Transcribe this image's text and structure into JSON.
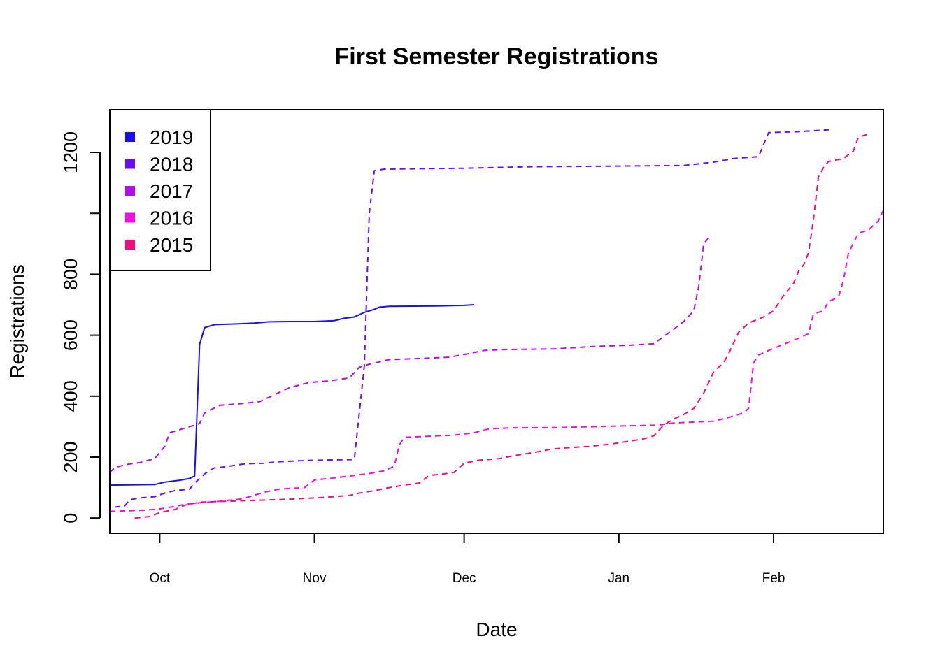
{
  "chart_data": {
    "type": "line",
    "title": "First Semester Registrations",
    "xlabel": "Date",
    "ylabel": "Registrations",
    "x_type": "date",
    "xlim": [
      "2019-09-21",
      "2020-02-23"
    ],
    "ylim": [
      -50,
      1340
    ],
    "xticks": [
      {
        "date": "2019-10-01",
        "label": "Oct"
      },
      {
        "date": "2019-11-01",
        "label": "Nov"
      },
      {
        "date": "2019-12-01",
        "label": "Dec"
      },
      {
        "date": "2020-01-01",
        "label": "Jan"
      },
      {
        "date": "2020-02-01",
        "label": "Feb"
      }
    ],
    "yticks": [
      0,
      200,
      400,
      600,
      800,
      1000,
      1200
    ],
    "ytick_labels": [
      "0",
      "200",
      "400",
      "600",
      "800",
      "",
      "1200"
    ],
    "grid": false,
    "legend_position": "top-left",
    "series": [
      {
        "name": "2019",
        "color": "#1a0df0",
        "style": "solid",
        "points": [
          [
            "2019-09-21",
            108
          ],
          [
            "2019-09-30",
            110
          ],
          [
            "2019-10-02",
            118
          ],
          [
            "2019-10-05",
            124
          ],
          [
            "2019-10-07",
            130
          ],
          [
            "2019-10-08",
            138
          ],
          [
            "2019-10-09",
            570
          ],
          [
            "2019-10-10",
            625
          ],
          [
            "2019-10-12",
            635
          ],
          [
            "2019-10-16",
            637
          ],
          [
            "2019-10-20",
            640
          ],
          [
            "2019-10-23",
            644
          ],
          [
            "2019-10-27",
            645
          ],
          [
            "2019-11-01",
            645
          ],
          [
            "2019-11-05",
            648
          ],
          [
            "2019-11-07",
            656
          ],
          [
            "2019-11-09",
            660
          ],
          [
            "2019-11-11",
            675
          ],
          [
            "2019-11-13",
            685
          ],
          [
            "2019-11-14",
            692
          ],
          [
            "2019-11-16",
            695
          ],
          [
            "2019-11-25",
            696
          ],
          [
            "2019-12-01",
            698
          ],
          [
            "2019-12-03",
            700
          ]
        ]
      },
      {
        "name": "2018",
        "color": "#6a0df0",
        "style": "dashed",
        "points": [
          [
            "2019-09-22",
            36
          ],
          [
            "2019-09-24",
            40
          ],
          [
            "2019-09-25",
            60
          ],
          [
            "2019-09-27",
            66
          ],
          [
            "2019-09-30",
            70
          ],
          [
            "2019-10-02",
            82
          ],
          [
            "2019-10-04",
            90
          ],
          [
            "2019-10-07",
            95
          ],
          [
            "2019-10-08",
            115
          ],
          [
            "2019-10-10",
            145
          ],
          [
            "2019-10-12",
            165
          ],
          [
            "2019-10-14",
            168
          ],
          [
            "2019-10-18",
            178
          ],
          [
            "2019-10-22",
            180
          ],
          [
            "2019-10-25",
            185
          ],
          [
            "2019-11-01",
            190
          ],
          [
            "2019-11-09",
            192
          ],
          [
            "2019-11-11",
            500
          ],
          [
            "2019-11-12",
            1000
          ],
          [
            "2019-11-13",
            1140
          ],
          [
            "2019-11-15",
            1145
          ],
          [
            "2019-12-01",
            1148
          ],
          [
            "2019-12-15",
            1153
          ],
          [
            "2019-12-31",
            1155
          ],
          [
            "2020-01-14",
            1157
          ],
          [
            "2020-01-20",
            1168
          ],
          [
            "2020-01-24",
            1180
          ],
          [
            "2020-01-29",
            1186
          ],
          [
            "2020-01-31",
            1265
          ],
          [
            "2020-02-06",
            1268
          ],
          [
            "2020-02-13",
            1275
          ]
        ]
      },
      {
        "name": "2017",
        "color": "#b00df0",
        "style": "dashed",
        "points": [
          [
            "2019-09-21",
            150
          ],
          [
            "2019-09-22",
            165
          ],
          [
            "2019-09-24",
            175
          ],
          [
            "2019-09-27",
            182
          ],
          [
            "2019-09-30",
            195
          ],
          [
            "2019-10-02",
            235
          ],
          [
            "2019-10-03",
            280
          ],
          [
            "2019-10-05",
            290
          ],
          [
            "2019-10-09",
            310
          ],
          [
            "2019-10-10",
            345
          ],
          [
            "2019-10-13",
            370
          ],
          [
            "2019-10-17",
            375
          ],
          [
            "2019-10-21",
            382
          ],
          [
            "2019-10-24",
            405
          ],
          [
            "2019-10-27",
            428
          ],
          [
            "2019-10-31",
            445
          ],
          [
            "2019-11-04",
            450
          ],
          [
            "2019-11-08",
            460
          ],
          [
            "2019-11-10",
            495
          ],
          [
            "2019-11-12",
            505
          ],
          [
            "2019-11-16",
            520
          ],
          [
            "2019-11-21",
            523
          ],
          [
            "2019-11-28",
            528
          ],
          [
            "2019-12-02",
            540
          ],
          [
            "2019-12-05",
            550
          ],
          [
            "2019-12-09",
            553
          ],
          [
            "2019-12-19",
            555
          ],
          [
            "2019-12-27",
            563
          ],
          [
            "2020-01-03",
            567
          ],
          [
            "2020-01-08",
            572
          ],
          [
            "2020-01-12",
            620
          ],
          [
            "2020-01-14",
            645
          ],
          [
            "2020-01-16",
            680
          ],
          [
            "2020-01-17",
            760
          ],
          [
            "2020-01-18",
            900
          ],
          [
            "2020-01-19",
            920
          ]
        ]
      },
      {
        "name": "2016",
        "color": "#f00de0",
        "style": "dashed",
        "points": [
          [
            "2019-09-21",
            22
          ],
          [
            "2019-09-25",
            24
          ],
          [
            "2019-09-28",
            26
          ],
          [
            "2019-10-01",
            30
          ],
          [
            "2019-10-04",
            38
          ],
          [
            "2019-10-06",
            45
          ],
          [
            "2019-10-09",
            50
          ],
          [
            "2019-10-13",
            55
          ],
          [
            "2019-10-17",
            62
          ],
          [
            "2019-10-19",
            70
          ],
          [
            "2019-10-22",
            85
          ],
          [
            "2019-10-25",
            95
          ],
          [
            "2019-10-28",
            98
          ],
          [
            "2019-10-30",
            100
          ],
          [
            "2019-11-01",
            125
          ],
          [
            "2019-11-05",
            132
          ],
          [
            "2019-11-09",
            140
          ],
          [
            "2019-11-12",
            146
          ],
          [
            "2019-11-15",
            155
          ],
          [
            "2019-11-17",
            170
          ],
          [
            "2019-11-18",
            240
          ],
          [
            "2019-11-19",
            265
          ],
          [
            "2019-11-23",
            268
          ],
          [
            "2019-11-29",
            272
          ],
          [
            "2019-12-03",
            280
          ],
          [
            "2019-12-06",
            293
          ],
          [
            "2019-12-10",
            296
          ],
          [
            "2019-12-20",
            297
          ],
          [
            "2020-01-01",
            302
          ],
          [
            "2020-01-09",
            305
          ],
          [
            "2020-01-12",
            312
          ],
          [
            "2020-01-20",
            318
          ],
          [
            "2020-01-23",
            330
          ],
          [
            "2020-01-26",
            345
          ],
          [
            "2020-01-27",
            360
          ],
          [
            "2020-01-28",
            510
          ],
          [
            "2020-01-29",
            535
          ],
          [
            "2020-01-31",
            550
          ],
          [
            "2020-02-03",
            570
          ],
          [
            "2020-02-06",
            590
          ],
          [
            "2020-02-08",
            605
          ],
          [
            "2020-02-09",
            670
          ],
          [
            "2020-02-11",
            680
          ],
          [
            "2020-02-12",
            710
          ],
          [
            "2020-02-14",
            725
          ],
          [
            "2020-02-15",
            780
          ],
          [
            "2020-02-16",
            870
          ],
          [
            "2020-02-18",
            935
          ],
          [
            "2020-02-20",
            945
          ],
          [
            "2020-02-22",
            975
          ],
          [
            "2020-02-23",
            1010
          ]
        ]
      },
      {
        "name": "2015",
        "color": "#f00d80",
        "style": "dashed",
        "points": [
          [
            "2019-09-26",
            0
          ],
          [
            "2019-09-29",
            5
          ],
          [
            "2019-10-01",
            18
          ],
          [
            "2019-10-04",
            28
          ],
          [
            "2019-10-06",
            42
          ],
          [
            "2019-10-09",
            52
          ],
          [
            "2019-10-14",
            55
          ],
          [
            "2019-10-20",
            58
          ],
          [
            "2019-10-27",
            62
          ],
          [
            "2019-11-03",
            68
          ],
          [
            "2019-11-08",
            74
          ],
          [
            "2019-11-10",
            82
          ],
          [
            "2019-11-13",
            90
          ],
          [
            "2019-11-16",
            100
          ],
          [
            "2019-11-19",
            108
          ],
          [
            "2019-11-22",
            115
          ],
          [
            "2019-11-24",
            140
          ],
          [
            "2019-11-27",
            145
          ],
          [
            "2019-11-29",
            150
          ],
          [
            "2019-12-01",
            180
          ],
          [
            "2019-12-04",
            190
          ],
          [
            "2019-12-08",
            195
          ],
          [
            "2019-12-11",
            205
          ],
          [
            "2019-12-15",
            215
          ],
          [
            "2019-12-18",
            225
          ],
          [
            "2019-12-21",
            230
          ],
          [
            "2019-12-26",
            235
          ],
          [
            "2019-12-30",
            242
          ],
          [
            "2020-01-03",
            252
          ],
          [
            "2020-01-06",
            260
          ],
          [
            "2020-01-08",
            270
          ],
          [
            "2020-01-10",
            305
          ],
          [
            "2020-01-12",
            325
          ],
          [
            "2020-01-14",
            340
          ],
          [
            "2020-01-16",
            360
          ],
          [
            "2020-01-18",
            410
          ],
          [
            "2020-01-20",
            480
          ],
          [
            "2020-01-22",
            510
          ],
          [
            "2020-01-23",
            540
          ],
          [
            "2020-01-25",
            610
          ],
          [
            "2020-01-27",
            640
          ],
          [
            "2020-01-30",
            660
          ],
          [
            "2020-02-01",
            680
          ],
          [
            "2020-02-03",
            730
          ],
          [
            "2020-02-05",
            770
          ],
          [
            "2020-02-06",
            810
          ],
          [
            "2020-02-07",
            830
          ],
          [
            "2020-02-08",
            870
          ],
          [
            "2020-02-09",
            980
          ],
          [
            "2020-02-10",
            1120
          ],
          [
            "2020-02-11",
            1150
          ],
          [
            "2020-02-12",
            1170
          ],
          [
            "2020-02-15",
            1180
          ],
          [
            "2020-02-17",
            1205
          ],
          [
            "2020-02-18",
            1250
          ],
          [
            "2020-02-20",
            1260
          ]
        ]
      }
    ]
  }
}
